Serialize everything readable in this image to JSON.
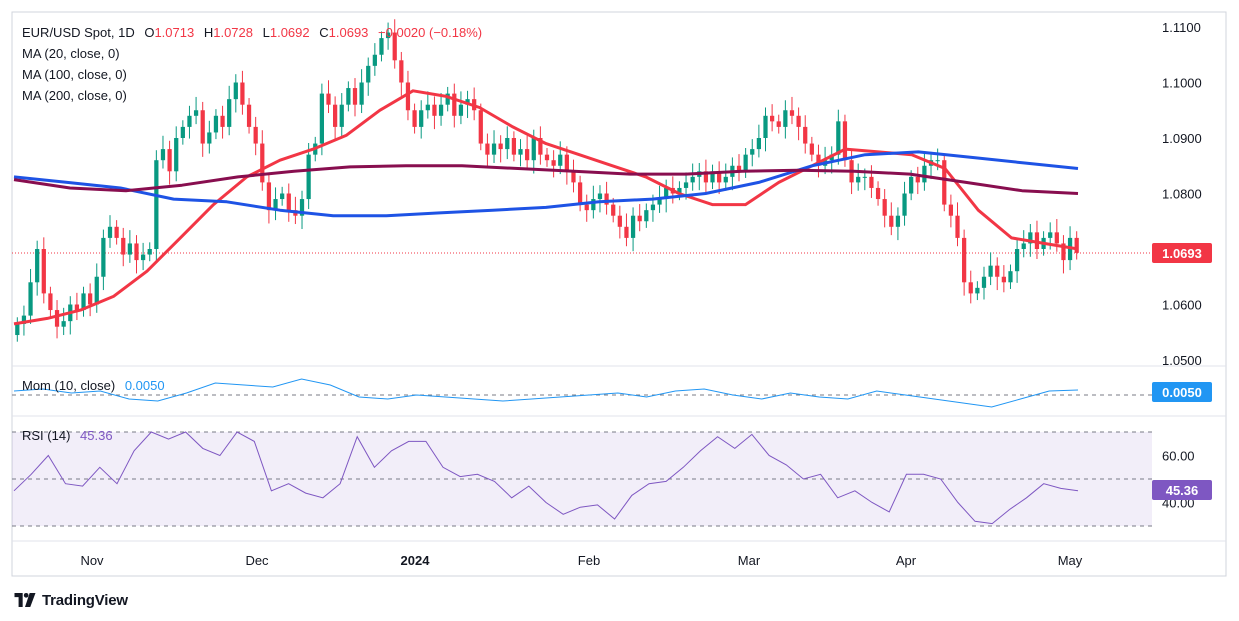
{
  "brand": {
    "name": "TradingView",
    "logo_icon": "tradingview-logo-icon"
  },
  "legend": {
    "symbol": "EUR/USD Spot, 1D",
    "ohlc": [
      {
        "key": "O",
        "value": "1.0713"
      },
      {
        "key": "H",
        "value": "1.0728"
      },
      {
        "key": "L",
        "value": "1.0692"
      },
      {
        "key": "C",
        "value": "1.0693"
      }
    ],
    "change": "−0.0020 (−0.18%)",
    "studies": [
      "MA (20, close, 0)",
      "MA (100, close, 0)",
      "MA (200, close, 0)"
    ],
    "momentum": {
      "label": "Mom (10, close)",
      "value": "0.0050"
    },
    "rsi": {
      "label": "RSI (14)",
      "value": "45.36"
    }
  },
  "tags": {
    "last_price": {
      "text": "1.0693",
      "color": "#f23645"
    },
    "momentum": {
      "text": "0.0050",
      "color": "#2196f3"
    },
    "rsi": {
      "text": "45.36",
      "color": "#7e57c2"
    }
  },
  "colors": {
    "up": "#089981",
    "down": "#f23645",
    "ma20": "#f23645",
    "ma100": "#1e53e5",
    "ma200": "#880e4f",
    "mom": "#2196f3",
    "rsi": "#7e57c2"
  },
  "chart_data": {
    "type": "candlestick",
    "symbol": "EUR/USD Spot",
    "timeframe": "1D",
    "price_axis": {
      "ticks": [
        "1.1100",
        "1.1000",
        "1.0900",
        "1.0800",
        "1.0700",
        "1.0600",
        "1.0500"
      ]
    },
    "time_axis": {
      "ticks": [
        "Nov",
        "Dec",
        "2024",
        "Feb",
        "Mar",
        "Apr",
        "May"
      ]
    },
    "last_price": 1.0693,
    "close_series": [
      1.0565,
      1.058,
      1.064,
      1.07,
      1.062,
      1.059,
      1.056,
      1.057,
      1.06,
      1.059,
      1.062,
      1.06,
      1.065,
      1.072,
      1.074,
      1.072,
      1.069,
      1.071,
      1.068,
      1.069,
      1.07,
      1.086,
      1.088,
      1.084,
      1.09,
      1.092,
      1.094,
      1.095,
      1.089,
      1.091,
      1.094,
      1.092,
      1.097,
      1.1,
      1.096,
      1.092,
      1.089,
      1.082,
      1.077,
      1.079,
      1.08,
      1.077,
      1.076,
      1.079,
      1.087,
      1.089,
      1.098,
      1.096,
      1.092,
      1.096,
      1.099,
      1.096,
      1.1,
      1.103,
      1.105,
      1.108,
      1.109,
      1.104,
      1.1,
      1.095,
      1.092,
      1.095,
      1.096,
      1.094,
      1.096,
      1.098,
      1.094,
      1.096,
      1.097,
      1.095,
      1.089,
      1.087,
      1.089,
      1.088,
      1.09,
      1.087,
      1.088,
      1.086,
      1.09,
      1.087,
      1.086,
      1.085,
      1.087,
      1.084,
      1.082,
      1.078,
      1.077,
      1.079,
      1.08,
      1.078,
      1.076,
      1.074,
      1.072,
      1.076,
      1.075,
      1.077,
      1.078,
      1.079,
      1.081,
      1.08,
      1.081,
      1.082,
      1.083,
      1.084,
      1.082,
      1.084,
      1.082,
      1.083,
      1.085,
      1.084,
      1.087,
      1.088,
      1.09,
      1.094,
      1.093,
      1.092,
      1.095,
      1.094,
      1.092,
      1.089,
      1.087,
      1.085,
      1.086,
      1.087,
      1.093,
      1.086,
      1.082,
      1.083,
      1.083,
      1.081,
      1.079,
      1.076,
      1.074,
      1.076,
      1.08,
      1.083,
      1.082,
      1.085,
      1.086,
      1.086,
      1.078,
      1.076,
      1.072,
      1.064,
      1.062,
      1.063,
      1.065,
      1.067,
      1.065,
      1.064,
      1.066,
      1.07,
      1.071,
      1.073,
      1.07,
      1.072,
      1.073,
      1.071,
      1.068,
      1.072,
      1.0693
    ],
    "series": [
      {
        "name": "MA (20, close, 0)",
        "values": [
          1.0565,
          1.0575,
          1.059,
          1.0615,
          1.066,
          1.072,
          1.078,
          1.083,
          1.086,
          1.088,
          1.0905,
          1.095,
          1.0985,
          1.0975,
          1.0955,
          1.092,
          1.089,
          1.087,
          1.085,
          1.083,
          1.08,
          1.078,
          1.078,
          1.082,
          1.085,
          1.088,
          1.0875,
          1.087,
          1.0845,
          1.077,
          1.072,
          1.071,
          1.07
        ]
      },
      {
        "name": "MA (100, close, 0)",
        "values": [
          1.083,
          1.082,
          1.081,
          1.079,
          1.0785,
          1.077,
          1.076,
          1.076,
          1.0765,
          1.077,
          1.0775,
          1.0785,
          1.079,
          1.08,
          1.082,
          1.085,
          1.087,
          1.0875,
          1.0865,
          1.0855,
          1.0845
        ]
      },
      {
        "name": "MA (200, close, 0)",
        "values": [
          1.0825,
          1.081,
          1.0805,
          1.0815,
          1.083,
          1.084,
          1.0848,
          1.085,
          1.085,
          1.0845,
          1.084,
          1.0835,
          1.0835,
          1.084,
          1.0842,
          1.084,
          1.0835,
          1.082,
          1.0805,
          1.08
        ]
      }
    ],
    "momentum": {
      "name": "Mom (10, close)",
      "last": 0.005,
      "values": [
        0.004,
        0.006,
        0.002,
        0.004,
        -0.004,
        -0.006,
        0.002,
        0.012,
        0.01,
        0.008,
        0.016,
        0.01,
        -0.002,
        -0.004,
        0.0,
        -0.002,
        -0.004,
        -0.006,
        -0.004,
        -0.002,
        0.0,
        0.002,
        -0.002,
        0.004,
        0.006,
        0.0,
        -0.004,
        0.002,
        -0.002,
        -0.004,
        0.004,
        0.0,
        -0.004,
        -0.008,
        -0.012,
        -0.004,
        0.004,
        0.005
      ]
    },
    "rsi": {
      "name": "RSI (14)",
      "last": 45.36,
      "levels": [
        70,
        50,
        30
      ],
      "ticks": [
        "60.00",
        "40.00"
      ],
      "values": [
        45,
        52,
        60,
        48,
        47,
        55,
        48,
        62,
        70,
        67,
        70,
        63,
        60,
        70,
        66,
        45,
        48,
        44,
        42,
        48,
        68,
        55,
        62,
        66,
        66,
        55,
        51,
        52,
        49,
        42,
        47,
        40,
        35,
        38,
        39,
        33,
        43,
        48,
        49,
        55,
        62,
        68,
        63,
        69,
        60,
        56,
        50,
        52,
        42,
        45,
        40,
        36,
        52,
        52,
        50,
        40,
        32,
        31,
        37,
        42,
        48,
        46,
        45
      ]
    }
  }
}
